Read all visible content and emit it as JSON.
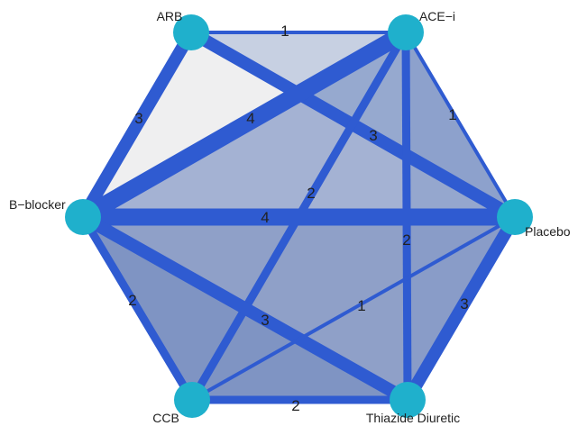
{
  "colors": {
    "edge": "#2f5bd1",
    "node": "#1fb0cc",
    "light_fill": "#efeff0",
    "band_fill": "#8fa0c8",
    "mid_fill": "#7f97c8",
    "dark_fill": "#6c86bd",
    "edge_text": "#222222"
  },
  "nodes": [
    {
      "id": "arb",
      "label": "ARB"
    },
    {
      "id": "acei",
      "label": "ACE−i"
    },
    {
      "id": "placebo",
      "label": "Placebo"
    },
    {
      "id": "thiazide",
      "label": "Thiazide Diuretic"
    },
    {
      "id": "ccb",
      "label": "CCB"
    },
    {
      "id": "bblocker",
      "label": "B−blocker"
    }
  ],
  "edges": [
    {
      "from": "arb",
      "to": "acei",
      "label": "1"
    },
    {
      "from": "arb",
      "to": "bblocker",
      "label": "3"
    },
    {
      "from": "arb",
      "to": "placebo",
      "label": "3"
    },
    {
      "from": "acei",
      "to": "bblocker",
      "label": "4"
    },
    {
      "from": "acei",
      "to": "placebo",
      "label": "1"
    },
    {
      "from": "acei",
      "to": "ccb",
      "label": "2"
    },
    {
      "from": "acei",
      "to": "thiazide",
      "label": "2"
    },
    {
      "from": "bblocker",
      "to": "placebo",
      "label": "4"
    },
    {
      "from": "bblocker",
      "to": "ccb",
      "label": "2"
    },
    {
      "from": "bblocker",
      "to": "thiazide",
      "label": "3"
    },
    {
      "from": "placebo",
      "to": "ccb",
      "label": "1"
    },
    {
      "from": "placebo",
      "to": "thiazide",
      "label": "3"
    },
    {
      "from": "ccb",
      "to": "thiazide",
      "label": "2"
    }
  ]
}
